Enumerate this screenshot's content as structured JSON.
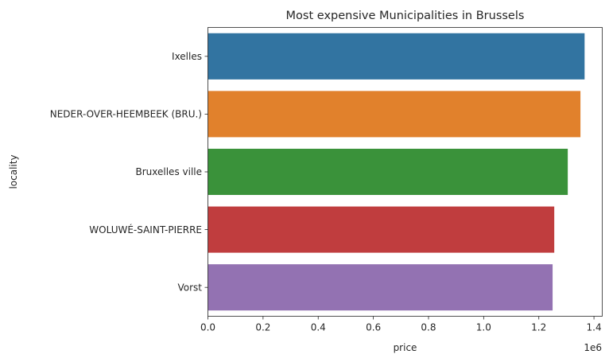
{
  "chart_data": {
    "type": "bar",
    "orientation": "horizontal",
    "title": "Most expensive Municipalities in Brussels",
    "xlabel": "price",
    "ylabel": "locality",
    "x_offset_label": "1e6",
    "xlim": [
      0,
      1430000
    ],
    "xticks": [
      0,
      200000,
      400000,
      600000,
      800000,
      1000000,
      1200000,
      1400000
    ],
    "xtick_labels": [
      "0.0",
      "0.2",
      "0.4",
      "0.6",
      "0.8",
      "1.0",
      "1.2",
      "1.4"
    ],
    "categories": [
      "Ixelles",
      "NEDER-OVER-HEEMBEEK (BRU.)",
      "Bruxelles ville",
      "WOLUWÉ-SAINT-PIERRE",
      "Vorst"
    ],
    "values": [
      1366000,
      1351000,
      1305000,
      1256000,
      1250000
    ],
    "colors": [
      "#3274a1",
      "#e1812c",
      "#3a923a",
      "#c03d3e",
      "#9372b2"
    ],
    "grid": false,
    "legend": "none"
  }
}
